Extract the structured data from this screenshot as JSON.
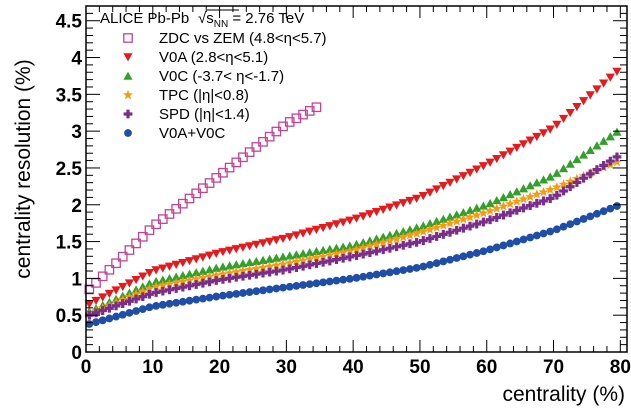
{
  "chart_data": {
    "type": "scatter",
    "title": "ALICE Pb-Pb",
    "energy_label": {
      "prefix": "√s",
      "subscript": "NN",
      "suffix": " = 2.76 TeV"
    },
    "xlabel": "centrality (%)",
    "ylabel": "centrality resolution (%)",
    "xlim": [
      0,
      81
    ],
    "ylim": [
      0,
      4.7
    ],
    "xticks": [
      0,
      10,
      20,
      30,
      40,
      50,
      60,
      70,
      80
    ],
    "yticks": [
      0,
      0.5,
      1,
      1.5,
      2,
      2.5,
      3,
      3.5,
      4,
      4.5
    ],
    "grid": false,
    "legend_position": "top-left",
    "series": [
      {
        "name": "ZDC vs ZEM (4.8<η<5.7)",
        "marker": "open-square",
        "color": "#c0449a",
        "x_start": 0.5,
        "x_step": 1,
        "count": 35,
        "y_anchors": [
          [
            0.5,
            0.85
          ],
          [
            5,
            1.25
          ],
          [
            10,
            1.7
          ],
          [
            15,
            2.05
          ],
          [
            20,
            2.4
          ],
          [
            25,
            2.75
          ],
          [
            30,
            3.1
          ],
          [
            35,
            3.35
          ]
        ]
      },
      {
        "name": "V0A (2.8<η<5.1)",
        "marker": "triangle-down",
        "color": "#e41a1c",
        "x_start": 0.5,
        "x_step": 1,
        "count": 80,
        "y_anchors": [
          [
            0.5,
            0.65
          ],
          [
            10,
            1.1
          ],
          [
            20,
            1.35
          ],
          [
            30,
            1.55
          ],
          [
            40,
            1.8
          ],
          [
            50,
            2.1
          ],
          [
            60,
            2.55
          ],
          [
            70,
            3.05
          ],
          [
            80,
            3.85
          ]
        ]
      },
      {
        "name": "V0C (-3.7< η<-1.7)",
        "marker": "triangle-up",
        "color": "#33a02c",
        "x_start": 0.5,
        "x_step": 1,
        "count": 80,
        "y_anchors": [
          [
            0.5,
            0.55
          ],
          [
            10,
            0.95
          ],
          [
            20,
            1.15
          ],
          [
            30,
            1.3
          ],
          [
            40,
            1.45
          ],
          [
            50,
            1.7
          ],
          [
            60,
            2.0
          ],
          [
            70,
            2.4
          ],
          [
            80,
            3.02
          ]
        ]
      },
      {
        "name": "TPC (|η|<0.8)",
        "marker": "star",
        "color": "#f39c12",
        "x_start": 0.5,
        "x_step": 1,
        "count": 80,
        "y_anchors": [
          [
            0.5,
            0.52
          ],
          [
            10,
            0.88
          ],
          [
            20,
            1.05
          ],
          [
            30,
            1.2
          ],
          [
            40,
            1.38
          ],
          [
            50,
            1.62
          ],
          [
            60,
            1.9
          ],
          [
            70,
            2.22
          ],
          [
            80,
            2.6
          ]
        ]
      },
      {
        "name": "SPD (|η|<1.4)",
        "marker": "cross",
        "color": "#7b2d8b",
        "x_start": 0.5,
        "x_step": 1,
        "count": 80,
        "y_anchors": [
          [
            0.5,
            0.5
          ],
          [
            10,
            0.8
          ],
          [
            20,
            0.98
          ],
          [
            30,
            1.12
          ],
          [
            40,
            1.3
          ],
          [
            50,
            1.5
          ],
          [
            60,
            1.78
          ],
          [
            70,
            2.1
          ],
          [
            80,
            2.68
          ]
        ]
      },
      {
        "name": "V0A+V0C",
        "marker": "circle",
        "color": "#1f4ea8",
        "x_start": 0.5,
        "x_step": 1,
        "count": 80,
        "y_anchors": [
          [
            0.5,
            0.38
          ],
          [
            10,
            0.62
          ],
          [
            20,
            0.76
          ],
          [
            30,
            0.88
          ],
          [
            40,
            1.0
          ],
          [
            50,
            1.15
          ],
          [
            60,
            1.38
          ],
          [
            70,
            1.65
          ],
          [
            80,
            2.0
          ]
        ]
      }
    ]
  }
}
